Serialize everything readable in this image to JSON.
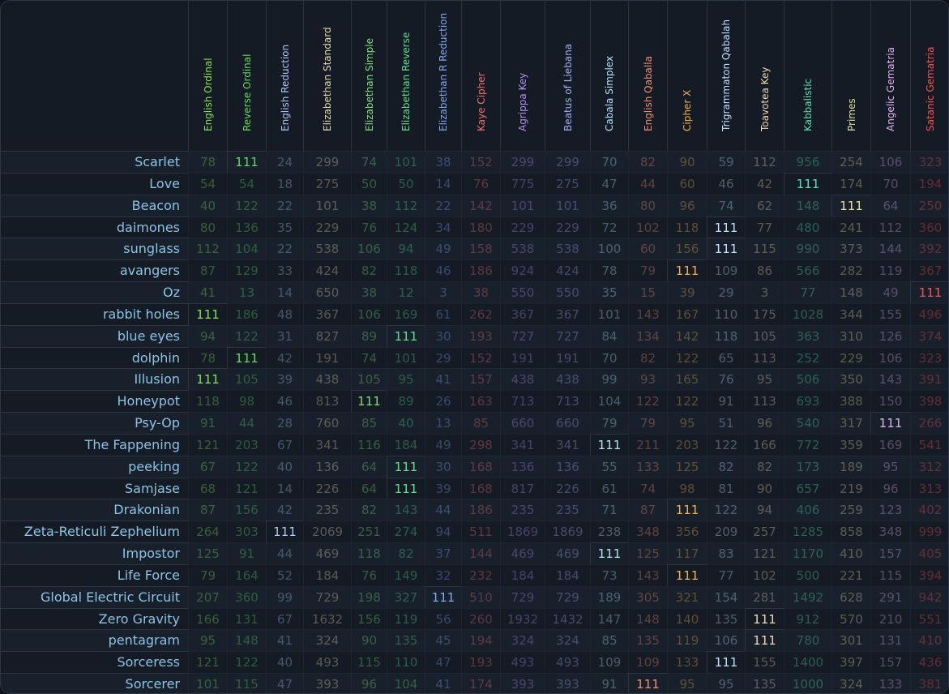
{
  "table": {
    "columns": [
      "English Ordinal",
      "Reverse Ordinal",
      "English Reduction",
      "Elizabethan Standard",
      "Elizabethan Simple",
      "Elizabethan Reverse",
      "Elizabethan R Reduction",
      "Kaye Cipher",
      "Agrippa Key",
      "Beatus of Liebana",
      "Cabala Simplex",
      "English Qaballa",
      "Cipher X",
      "Trigrammaton Qabalah",
      "Toavotea Key",
      "Kabbalistic",
      "Primes",
      "Angelic Gematria",
      "Satanic Gematria"
    ],
    "colors": [
      "#86e35a",
      "#5fdc5f",
      "#a8c8f0",
      "#e8d8b0",
      "#80e080",
      "#5fe08a",
      "#80a8f0",
      "#f07070",
      "#b090f0",
      "#a0b0f0",
      "#b0e4f4",
      "#f09070",
      "#f0b050",
      "#c0e0ff",
      "#f0d8b0",
      "#60e0b0",
      "#e8e0a0",
      "#e0b0f0",
      "#ff5050"
    ],
    "rows": [
      {
        "label": "Scarlet",
        "values": [
          78,
          111,
          24,
          299,
          74,
          101,
          38,
          152,
          299,
          299,
          70,
          82,
          90,
          59,
          112,
          956,
          254,
          106,
          323
        ]
      },
      {
        "label": "Love",
        "values": [
          54,
          54,
          18,
          275,
          50,
          50,
          14,
          76,
          775,
          275,
          47,
          44,
          60,
          46,
          42,
          111,
          174,
          70,
          194
        ]
      },
      {
        "label": "Beacon",
        "values": [
          40,
          122,
          22,
          101,
          38,
          112,
          22,
          142,
          101,
          101,
          36,
          80,
          96,
          74,
          62,
          148,
          111,
          64,
          250
        ]
      },
      {
        "label": "daimones",
        "values": [
          80,
          136,
          35,
          229,
          76,
          124,
          34,
          180,
          229,
          229,
          72,
          102,
          118,
          111,
          77,
          480,
          241,
          112,
          360
        ]
      },
      {
        "label": "sunglass",
        "values": [
          112,
          104,
          22,
          538,
          106,
          94,
          49,
          158,
          538,
          538,
          100,
          60,
          156,
          111,
          115,
          990,
          373,
          144,
          392
        ]
      },
      {
        "label": "avangers",
        "values": [
          87,
          129,
          33,
          424,
          82,
          118,
          46,
          186,
          924,
          424,
          78,
          79,
          111,
          109,
          86,
          566,
          282,
          119,
          367
        ]
      },
      {
        "label": "Oz",
        "values": [
          41,
          13,
          14,
          650,
          38,
          12,
          3,
          38,
          550,
          550,
          35,
          15,
          39,
          29,
          3,
          77,
          148,
          49,
          111
        ]
      },
      {
        "label": "rabbit holes",
        "values": [
          111,
          186,
          48,
          367,
          106,
          169,
          61,
          262,
          367,
          367,
          101,
          143,
          167,
          110,
          175,
          1028,
          344,
          155,
          496
        ]
      },
      {
        "label": "blue eyes",
        "values": [
          94,
          122,
          31,
          827,
          89,
          111,
          30,
          193,
          727,
          727,
          84,
          134,
          142,
          118,
          105,
          363,
          310,
          126,
          374
        ]
      },
      {
        "label": "dolphin",
        "values": [
          78,
          111,
          42,
          191,
          74,
          101,
          29,
          152,
          191,
          191,
          70,
          82,
          122,
          65,
          113,
          252,
          229,
          106,
          323
        ]
      },
      {
        "label": "Illusion",
        "values": [
          111,
          105,
          39,
          438,
          105,
          95,
          41,
          157,
          438,
          438,
          99,
          93,
          165,
          76,
          95,
          506,
          350,
          143,
          391
        ]
      },
      {
        "label": "Honeypot",
        "values": [
          118,
          98,
          46,
          813,
          111,
          89,
          26,
          163,
          713,
          713,
          104,
          122,
          122,
          91,
          113,
          693,
          388,
          150,
          398
        ]
      },
      {
        "label": "Psy-Op",
        "values": [
          91,
          44,
          28,
          760,
          85,
          40,
          13,
          85,
          660,
          660,
          79,
          79,
          95,
          51,
          96,
          540,
          317,
          111,
          266
        ]
      },
      {
        "label": "The Fappening",
        "values": [
          121,
          203,
          67,
          341,
          116,
          184,
          49,
          298,
          341,
          341,
          111,
          211,
          203,
          122,
          166,
          772,
          359,
          169,
          541
        ]
      },
      {
        "label": "peeking",
        "values": [
          67,
          122,
          40,
          136,
          64,
          111,
          30,
          168,
          136,
          136,
          55,
          133,
          125,
          82,
          82,
          173,
          189,
          95,
          312
        ]
      },
      {
        "label": "Samjase",
        "values": [
          68,
          121,
          14,
          226,
          64,
          111,
          39,
          168,
          817,
          226,
          61,
          74,
          98,
          81,
          90,
          657,
          219,
          96,
          313
        ]
      },
      {
        "label": "Drakonian",
        "values": [
          87,
          156,
          42,
          235,
          82,
          143,
          44,
          186,
          235,
          235,
          71,
          87,
          111,
          122,
          94,
          406,
          259,
          123,
          402
        ]
      },
      {
        "label": "Zeta-Reticuli Zephelium",
        "values": [
          264,
          303,
          111,
          2069,
          251,
          274,
          94,
          511,
          1869,
          1869,
          238,
          348,
          356,
          209,
          257,
          1285,
          858,
          348,
          999
        ]
      },
      {
        "label": "Impostor",
        "values": [
          125,
          91,
          44,
          469,
          118,
          82,
          37,
          144,
          469,
          469,
          111,
          125,
          117,
          83,
          121,
          1170,
          410,
          157,
          405
        ]
      },
      {
        "label": "Life Force",
        "values": [
          79,
          164,
          52,
          184,
          76,
          149,
          32,
          232,
          184,
          184,
          73,
          143,
          111,
          77,
          102,
          500,
          221,
          115,
          394
        ]
      },
      {
        "label": "Global Electric Circuit",
        "values": [
          207,
          360,
          99,
          729,
          198,
          327,
          111,
          510,
          729,
          729,
          189,
          305,
          321,
          154,
          281,
          1492,
          628,
          291,
          942
        ]
      },
      {
        "label": "Zero Gravity",
        "values": [
          166,
          131,
          67,
          1632,
          156,
          119,
          56,
          260,
          1932,
          1432,
          147,
          148,
          140,
          135,
          111,
          912,
          570,
          210,
          551
        ]
      },
      {
        "label": "pentagram",
        "values": [
          95,
          148,
          41,
          324,
          90,
          135,
          45,
          194,
          324,
          324,
          85,
          135,
          119,
          106,
          111,
          780,
          301,
          131,
          410
        ]
      },
      {
        "label": "Sorceress",
        "values": [
          121,
          122,
          40,
          493,
          115,
          110,
          47,
          193,
          493,
          493,
          109,
          109,
          133,
          111,
          155,
          1400,
          397,
          157,
          436
        ]
      },
      {
        "label": "Sorcerer",
        "values": [
          101,
          115,
          47,
          393,
          96,
          104,
          41,
          174,
          393,
          393,
          91,
          111,
          95,
          95,
          135,
          1000,
          324,
          133,
          381
        ]
      }
    ]
  }
}
